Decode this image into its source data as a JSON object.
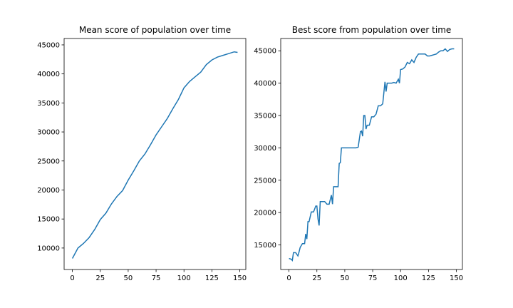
{
  "chart_data": [
    {
      "type": "line",
      "title": "Mean score of population over time",
      "xlabel": "",
      "ylabel": "",
      "xlim": [
        -7.4,
        155.4
      ],
      "ylim": [
        6300,
        46100
      ],
      "xticks": [
        0,
        25,
        50,
        75,
        100,
        125,
        150
      ],
      "yticks": [
        10000,
        15000,
        20000,
        25000,
        30000,
        35000,
        40000,
        45000
      ],
      "grid": false,
      "color": "#1f77b4",
      "series": [
        {
          "x": [
            0,
            5,
            10,
            15,
            20,
            25,
            30,
            35,
            40,
            45,
            50,
            55,
            60,
            65,
            70,
            75,
            80,
            85,
            90,
            95,
            100,
            105,
            110,
            115,
            120,
            125,
            130,
            135,
            140,
            145,
            148
          ],
          "y": [
            8200,
            10000,
            10800,
            11800,
            13200,
            14900,
            16000,
            17600,
            18900,
            19900,
            21700,
            23300,
            25000,
            26200,
            27800,
            29500,
            30900,
            32300,
            34000,
            35600,
            37600,
            38700,
            39500,
            40300,
            41600,
            42400,
            42900,
            43200,
            43500,
            43800,
            43700
          ]
        }
      ]
    },
    {
      "type": "line",
      "title": "Best score from population over time",
      "xlabel": "",
      "ylabel": "",
      "xlim": [
        -7.4,
        155.4
      ],
      "ylim": [
        11200,
        46900
      ],
      "xticks": [
        0,
        25,
        50,
        75,
        100,
        125,
        150
      ],
      "yticks": [
        15000,
        20000,
        25000,
        30000,
        35000,
        40000,
        45000
      ],
      "grid": false,
      "color": "#1f77b4",
      "series": [
        {
          "x": [
            0,
            2,
            3,
            4,
            6,
            8,
            9,
            10,
            12,
            14,
            15,
            16,
            17,
            18,
            20,
            22,
            24,
            25,
            26,
            27,
            28,
            30,
            32,
            34,
            36,
            38,
            39,
            40,
            42,
            44,
            45,
            46,
            47,
            48,
            50,
            55,
            60,
            62,
            64,
            65,
            66,
            67,
            68,
            69,
            70,
            72,
            74,
            76,
            78,
            80,
            82,
            84,
            86,
            87,
            88,
            89,
            90,
            92,
            94,
            96,
            98,
            99,
            100,
            102,
            104,
            106,
            108,
            110,
            112,
            114,
            116,
            118,
            120,
            122,
            124,
            126,
            128,
            130,
            132,
            134,
            136,
            138,
            140,
            142,
            144,
            146,
            148
          ],
          "y": [
            12900,
            12800,
            12600,
            13800,
            13800,
            13300,
            13900,
            14600,
            15200,
            15200,
            16700,
            15900,
            18600,
            18600,
            20100,
            20100,
            21000,
            21000,
            19000,
            18000,
            21700,
            21700,
            21700,
            21300,
            21300,
            22700,
            21300,
            24000,
            24000,
            24000,
            27600,
            27700,
            30000,
            30000,
            30000,
            30000,
            30000,
            30100,
            32500,
            32600,
            31800,
            35000,
            35000,
            32900,
            33500,
            33500,
            34800,
            34800,
            35200,
            36500,
            36500,
            36800,
            40200,
            38700,
            40000,
            40000,
            40000,
            40000,
            40100,
            40000,
            40600,
            40000,
            42100,
            42200,
            42500,
            43200,
            43000,
            43600,
            43200,
            44000,
            44500,
            44500,
            44500,
            44500,
            44200,
            44200,
            44300,
            44400,
            44500,
            44800,
            45000,
            45000,
            45300,
            44900,
            45200,
            45300,
            45300
          ]
        }
      ]
    }
  ]
}
